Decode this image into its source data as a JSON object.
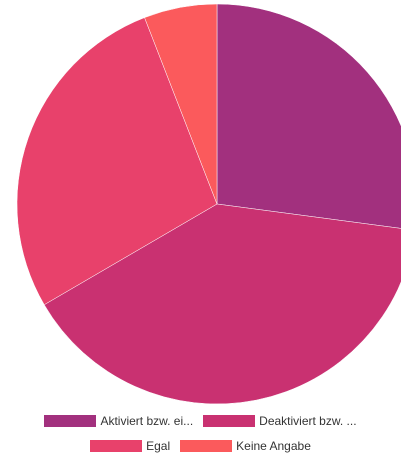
{
  "chart_data": {
    "type": "pie",
    "title": "",
    "legend_position": "bottom",
    "series": [
      {
        "name": "Aktiviert bzw. ei...",
        "value": 27.1,
        "color": "#a2307e"
      },
      {
        "name": "Deaktiviert bzw. ...",
        "value": 39.5,
        "color": "#c93171"
      },
      {
        "name": "Egal",
        "value": 27.5,
        "color": "#e8416b"
      },
      {
        "name": "Keine Angabe",
        "value": 5.9,
        "color": "#fb5a5c"
      }
    ]
  }
}
